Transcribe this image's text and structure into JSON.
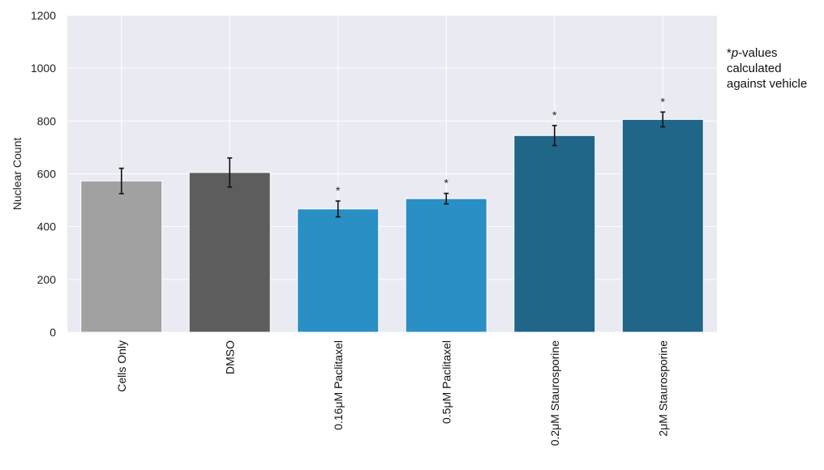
{
  "chart_data": {
    "type": "bar",
    "ylabel": "Nuclear Count",
    "ylim": [
      0,
      1200
    ],
    "yticks": [
      0,
      200,
      400,
      600,
      800,
      1000,
      1200
    ],
    "grid": true,
    "categories": [
      "Cells Only",
      "DMSO",
      "0.16μM Paclitaxel",
      "0.5μM Paclitaxel",
      "0.2μM Staurosporine",
      "2μM Staurosporine"
    ],
    "values": [
      573,
      605,
      467,
      506,
      745,
      806
    ],
    "error": [
      48,
      55,
      30,
      20,
      38,
      28
    ],
    "significant": [
      false,
      false,
      true,
      true,
      true,
      true
    ],
    "significance_marker": "*",
    "colors": [
      "#a1a1a1",
      "#5d5d5d",
      "#2a8fc4",
      "#2a8fc4",
      "#1f6689",
      "#1f6689"
    ],
    "plot_bg": "#eaeaf2",
    "grid_color": "#ffffff"
  },
  "note": {
    "star": "*",
    "p": "p",
    "line1_rest": "-values",
    "line2": "calculated",
    "line3": "against vehicle"
  }
}
